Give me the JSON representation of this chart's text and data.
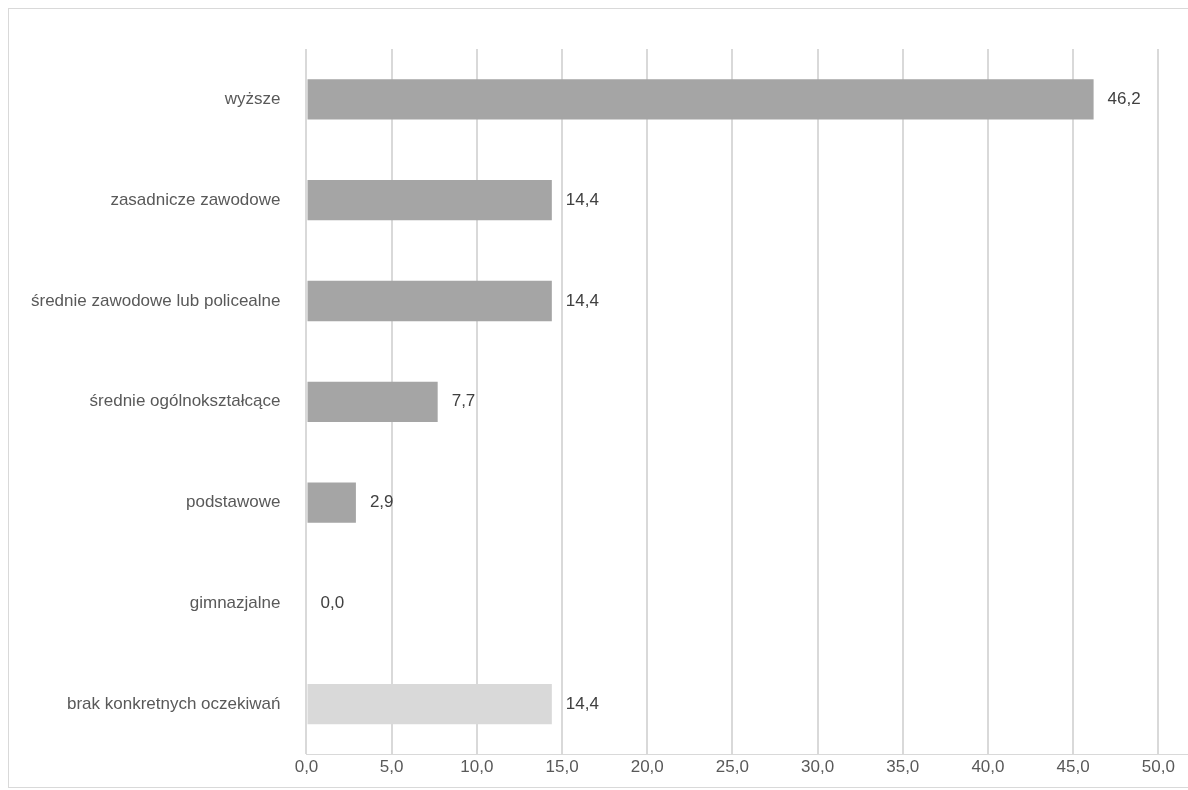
{
  "chart_data": {
    "type": "bar",
    "orientation": "horizontal",
    "categories": [
      "wyższe",
      "zasadnicze zawodowe",
      "średnie zawodowe lub policealne",
      "średnie ogólnokształcące",
      "podstawowe",
      "gimnazjalne",
      "brak konkretnych oczekiwań"
    ],
    "values": [
      46.2,
      14.4,
      14.4,
      7.7,
      2.9,
      0.0,
      14.4
    ],
    "colors": [
      "#a5a5a5",
      "#a5a5a5",
      "#a5a5a5",
      "#a5a5a5",
      "#a5a5a5",
      "#a5a5a5",
      "#d9d9d9"
    ],
    "value_labels": [
      "46,2",
      "14,4",
      "14,4",
      "7,7",
      "2,9",
      "0,0",
      "14,4"
    ],
    "xlim": [
      0,
      51.8
    ],
    "xticks": [
      {
        "value": 0,
        "label": "0,0"
      },
      {
        "value": 5,
        "label": "5,0"
      },
      {
        "value": 10,
        "label": "10,0"
      },
      {
        "value": 15,
        "label": "15,0"
      },
      {
        "value": 20,
        "label": "20,0"
      },
      {
        "value": 25,
        "label": "25,0"
      },
      {
        "value": 30,
        "label": "30,0"
      },
      {
        "value": 35,
        "label": "35,0"
      },
      {
        "value": 40,
        "label": "40,0"
      },
      {
        "value": 45,
        "label": "45,0"
      },
      {
        "value": 50,
        "label": "50,0"
      }
    ],
    "grid": "x",
    "legend": false
  }
}
